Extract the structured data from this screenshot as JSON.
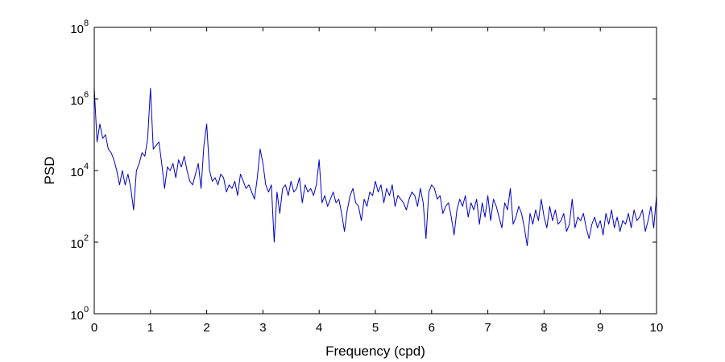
{
  "chart_data": {
    "type": "line",
    "title": "",
    "xlabel": "Frequency (cpd)",
    "ylabel": "PSD",
    "xlim": [
      0,
      10
    ],
    "ylim_exponent": [
      0,
      8
    ],
    "yscale": "log",
    "grid": false,
    "x_ticks": [
      "0",
      "1",
      "2",
      "3",
      "4",
      "5",
      "6",
      "7",
      "8",
      "9",
      "10"
    ],
    "y_ticks": [
      {
        "base": "10",
        "exp": "0"
      },
      {
        "base": "10",
        "exp": "2"
      },
      {
        "base": "10",
        "exp": "4"
      },
      {
        "base": "10",
        "exp": "6"
      },
      {
        "base": "10",
        "exp": "8"
      }
    ],
    "series": [
      {
        "color": "#0000cc",
        "x": [
          0.0,
          0.05,
          0.1,
          0.15,
          0.2,
          0.25,
          0.3,
          0.35,
          0.4,
          0.45,
          0.5,
          0.55,
          0.6,
          0.65,
          0.7,
          0.75,
          0.8,
          0.85,
          0.9,
          0.95,
          1.0,
          1.05,
          1.1,
          1.15,
          1.2,
          1.25,
          1.3,
          1.35,
          1.4,
          1.45,
          1.5,
          1.55,
          1.6,
          1.65,
          1.7,
          1.75,
          1.8,
          1.85,
          1.9,
          1.95,
          2.0,
          2.05,
          2.1,
          2.15,
          2.2,
          2.25,
          2.3,
          2.35,
          2.4,
          2.45,
          2.5,
          2.55,
          2.6,
          2.65,
          2.7,
          2.75,
          2.8,
          2.85,
          2.9,
          2.95,
          3.0,
          3.05,
          3.1,
          3.15,
          3.2,
          3.25,
          3.3,
          3.35,
          3.4,
          3.45,
          3.5,
          3.55,
          3.6,
          3.65,
          3.7,
          3.75,
          3.8,
          3.85,
          3.9,
          3.95,
          4.0,
          4.05,
          4.1,
          4.15,
          4.2,
          4.25,
          4.3,
          4.35,
          4.4,
          4.45,
          4.5,
          4.55,
          4.6,
          4.65,
          4.7,
          4.75,
          4.8,
          4.85,
          4.9,
          4.95,
          5.0,
          5.05,
          5.1,
          5.15,
          5.2,
          5.25,
          5.3,
          5.35,
          5.4,
          5.45,
          5.5,
          5.55,
          5.6,
          5.65,
          5.7,
          5.75,
          5.8,
          5.85,
          5.9,
          5.95,
          6.0,
          6.05,
          6.1,
          6.15,
          6.2,
          6.25,
          6.3,
          6.35,
          6.4,
          6.45,
          6.5,
          6.55,
          6.6,
          6.65,
          6.7,
          6.75,
          6.8,
          6.85,
          6.9,
          6.95,
          7.0,
          7.05,
          7.1,
          7.15,
          7.2,
          7.25,
          7.3,
          7.35,
          7.4,
          7.45,
          7.5,
          7.55,
          7.6,
          7.65,
          7.7,
          7.75,
          7.8,
          7.85,
          7.9,
          7.95,
          8.0,
          8.05,
          8.1,
          8.15,
          8.2,
          8.25,
          8.3,
          8.35,
          8.4,
          8.45,
          8.5,
          8.55,
          8.6,
          8.65,
          8.7,
          8.75,
          8.8,
          8.85,
          8.9,
          8.95,
          9.0,
          9.05,
          9.1,
          9.15,
          9.2,
          9.25,
          9.3,
          9.35,
          9.4,
          9.45,
          9.5,
          9.55,
          9.6,
          9.65,
          9.7,
          9.75,
          9.8,
          9.85,
          9.9,
          9.95,
          10.0
        ],
        "y_log10": [
          6.3,
          4.8,
          5.3,
          4.9,
          5.0,
          4.6,
          4.5,
          4.3,
          4.0,
          3.6,
          4.0,
          3.6,
          3.9,
          3.5,
          2.9,
          4.0,
          4.2,
          4.5,
          4.4,
          4.9,
          6.3,
          4.6,
          4.7,
          4.8,
          4.2,
          3.5,
          4.1,
          4.0,
          4.2,
          3.8,
          4.3,
          4.1,
          4.4,
          4.0,
          3.7,
          3.6,
          3.9,
          4.2,
          3.5,
          4.7,
          5.3,
          4.0,
          3.7,
          3.8,
          3.6,
          3.9,
          3.8,
          3.4,
          3.6,
          3.5,
          3.7,
          3.3,
          3.9,
          3.7,
          3.5,
          3.6,
          3.4,
          3.2,
          3.8,
          4.6,
          4.2,
          3.6,
          3.4,
          3.6,
          2.0,
          3.4,
          2.8,
          3.5,
          3.6,
          3.3,
          3.7,
          3.4,
          3.5,
          3.8,
          3.1,
          3.6,
          3.4,
          3.5,
          3.3,
          3.6,
          4.3,
          3.1,
          3.3,
          3.0,
          3.2,
          3.4,
          3.1,
          3.2,
          2.8,
          2.3,
          2.9,
          3.3,
          3.5,
          3.1,
          3.0,
          2.6,
          3.2,
          3.0,
          3.4,
          3.3,
          3.7,
          3.4,
          3.6,
          3.1,
          3.5,
          3.3,
          3.6,
          3.0,
          3.3,
          3.2,
          3.1,
          2.9,
          3.2,
          3.4,
          3.3,
          3.0,
          3.5,
          3.1,
          2.1,
          3.4,
          3.6,
          3.5,
          3.2,
          3.3,
          2.8,
          3.0,
          3.1,
          2.7,
          2.2,
          2.9,
          3.2,
          3.0,
          3.3,
          2.7,
          3.1,
          2.9,
          3.2,
          2.5,
          3.1,
          2.7,
          3.3,
          2.6,
          3.2,
          3.0,
          2.7,
          2.4,
          3.1,
          2.9,
          3.5,
          2.5,
          2.7,
          3.0,
          2.8,
          2.4,
          1.9,
          2.8,
          2.5,
          2.9,
          2.6,
          3.2,
          2.7,
          2.4,
          3.0,
          2.6,
          2.9,
          2.5,
          2.6,
          2.8,
          2.3,
          2.5,
          3.2,
          2.4,
          2.7,
          2.6,
          2.8,
          2.4,
          2.1,
          2.5,
          2.7,
          2.4,
          2.6,
          2.2,
          2.8,
          2.5,
          2.9,
          2.4,
          2.7,
          2.3,
          2.6,
          2.5,
          2.8,
          2.4,
          2.9,
          2.6,
          2.7,
          2.9,
          2.3,
          2.6,
          3.0,
          2.4,
          3.3
        ]
      }
    ]
  }
}
